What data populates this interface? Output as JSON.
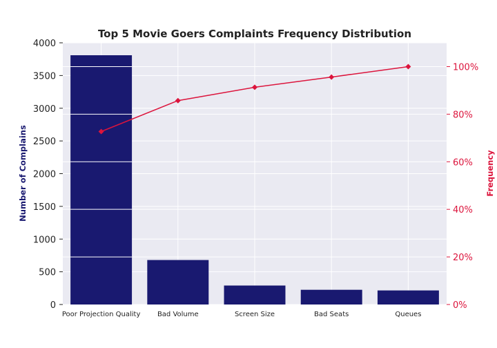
{
  "chart_data": {
    "type": "bar",
    "title": "Top 5 Movie Goers Complaints Frequency Distribution",
    "xlabel": "",
    "ylabel": "Number of Complains",
    "y2label": "Frequency",
    "categories": [
      "Poor Projection Quality",
      "Bad Volume",
      "Screen Size",
      "Bad Seats",
      "Queues"
    ],
    "series": [
      {
        "type": "bar",
        "axis": "left",
        "values": [
          3810,
          680,
          290,
          225,
          215
        ]
      },
      {
        "type": "line",
        "axis": "right",
        "values": [
          72.7,
          85.7,
          91.3,
          95.6,
          100.0
        ]
      }
    ],
    "ylim": [
      0,
      4000
    ],
    "yticks": [
      "0",
      "500",
      "1000",
      "1500",
      "2000",
      "2500",
      "3000",
      "3500",
      "4000"
    ],
    "y2lim": [
      0,
      110
    ],
    "y2ticks": [
      "0%",
      "20%",
      "40%",
      "60%",
      "80%",
      "100%"
    ],
    "grid": true,
    "colors": {
      "bar": "#191970",
      "line": "#dc143c",
      "background": "#eaeaf2",
      "grid": "#ffffff",
      "title": "#222222",
      "tick": "#222222"
    }
  }
}
